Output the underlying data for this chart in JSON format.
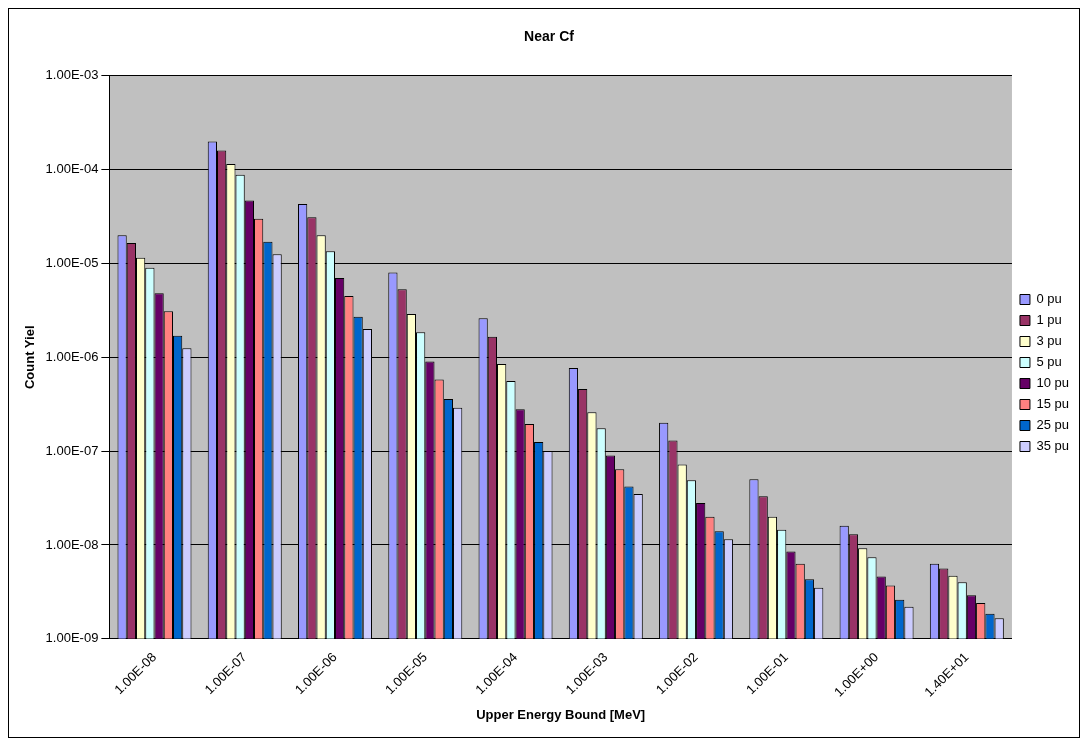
{
  "chart_data": {
    "type": "bar",
    "title": "Near Cf",
    "xlabel": "Upper Energy Bound [MeV]",
    "ylabel": "Count Yiel",
    "log": "y",
    "grid": "y",
    "legend": "right",
    "categories": [
      "1.00E-08",
      "1.00E-07",
      "1.00E-06",
      "1.00E-05",
      "1.00E-04",
      "1.00E-03",
      "1.00E-02",
      "1.00E-01",
      "1.00E+00",
      "1.40E+01"
    ],
    "ylim": [
      1e-09,
      0.001
    ],
    "yticks": [
      {
        "value": 1e-09,
        "label": "1.00E-09"
      },
      {
        "value": 1e-08,
        "label": "1.00E-08"
      },
      {
        "value": 1e-07,
        "label": "1.00E-07"
      },
      {
        "value": 1e-06,
        "label": "1.00E-06"
      },
      {
        "value": 1e-05,
        "label": "1.00E-05"
      },
      {
        "value": 0.0001,
        "label": "1.00E-04"
      },
      {
        "value": 0.001,
        "label": "1.00E-03"
      }
    ],
    "series": [
      {
        "name": "0 pu",
        "color": "#9999ff",
        "values": [
          2e-05,
          0.0002,
          4.3e-05,
          8e-06,
          2.6e-06,
          7.7e-07,
          2e-07,
          5e-08,
          1.6e-08,
          6.3e-09
        ]
      },
      {
        "name": "1 pu",
        "color": "#993366",
        "values": [
          1.65e-05,
          0.00016,
          3.1e-05,
          5.3e-06,
          1.65e-06,
          4.6e-07,
          1.3e-07,
          3.3e-08,
          1.3e-08,
          5.6e-09
        ]
      },
      {
        "name": "3 pu",
        "color": "#ffffcc",
        "values": [
          1.15e-05,
          0.000115,
          2e-05,
          2.9e-06,
          8.5e-07,
          2.6e-07,
          7.2e-08,
          2e-08,
          9.2e-09,
          4.7e-09
        ]
      },
      {
        "name": "5 pu",
        "color": "#ccffff",
        "values": [
          9e-06,
          8.8e-05,
          1.35e-05,
          1.85e-06,
          5.6e-07,
          1.75e-07,
          4.9e-08,
          1.45e-08,
          7.4e-09,
          4e-09
        ]
      },
      {
        "name": "10 pu",
        "color": "#660066",
        "values": [
          4.8e-06,
          4.7e-05,
          7e-06,
          9e-07,
          2.8e-07,
          9e-08,
          2.8e-08,
          8.5e-09,
          4.6e-09,
          2.9e-09
        ]
      },
      {
        "name": "15 pu",
        "color": "#ff8080",
        "values": [
          3.1e-06,
          3e-05,
          4.5e-06,
          5.8e-07,
          1.95e-07,
          6.4e-08,
          2e-08,
          6.3e-09,
          3.7e-09,
          2.4e-09
        ]
      },
      {
        "name": "25 pu",
        "color": "#0066cc",
        "values": [
          1.7e-06,
          1.7e-05,
          2.7e-06,
          3.6e-07,
          1.25e-07,
          4.2e-08,
          1.4e-08,
          4.3e-09,
          2.6e-09,
          1.85e-09
        ]
      },
      {
        "name": "35 pu",
        "color": "#ccccff",
        "values": [
          1.25e-06,
          1.25e-05,
          2e-06,
          2.9e-07,
          1e-07,
          3.5e-08,
          1.15e-08,
          3.5e-09,
          2.2e-09,
          1.65e-09
        ]
      }
    ]
  }
}
